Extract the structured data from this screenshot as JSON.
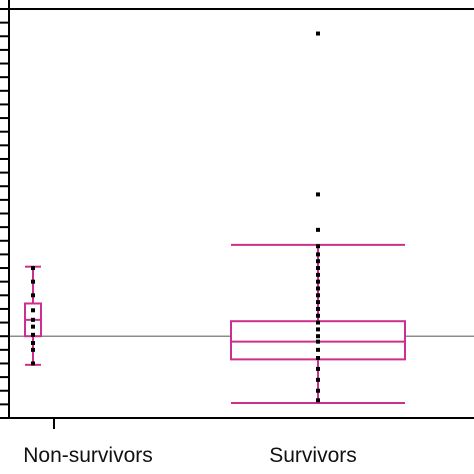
{
  "chart_data": {
    "type": "box",
    "title": "",
    "xlabel": "",
    "ylabel": "",
    "categories": [
      "Non-survivors",
      "Survivors"
    ],
    "ylim": [
      0,
      15
    ],
    "grid": false,
    "reference_line": {
      "y": 3.0,
      "color": "#666666"
    },
    "colors": {
      "box": "#cc2f8c",
      "points": "#000000",
      "axis": "#000000"
    },
    "boxes": [
      {
        "category": "Non-survivors",
        "whisker_low": 1.95,
        "q1": 3.0,
        "median": 3.6,
        "q3": 4.2,
        "whisker_high": 5.55,
        "points": [
          2.0,
          2.5,
          2.75,
          3.05,
          3.35,
          3.6,
          3.95,
          4.5,
          5.0,
          5.5
        ]
      },
      {
        "category": "Survivors",
        "whisker_low": 0.55,
        "q1": 2.15,
        "median": 2.8,
        "q3": 3.55,
        "whisker_high": 6.35,
        "points": [
          0.65,
          1.0,
          1.4,
          1.8,
          2.2,
          2.5,
          2.8,
          3.0,
          3.25,
          3.5,
          3.75,
          4.0,
          4.25,
          4.5,
          4.75,
          5.0,
          5.25,
          5.5,
          5.75,
          6.0,
          6.3,
          6.9,
          8.2,
          14.1
        ]
      }
    ]
  }
}
